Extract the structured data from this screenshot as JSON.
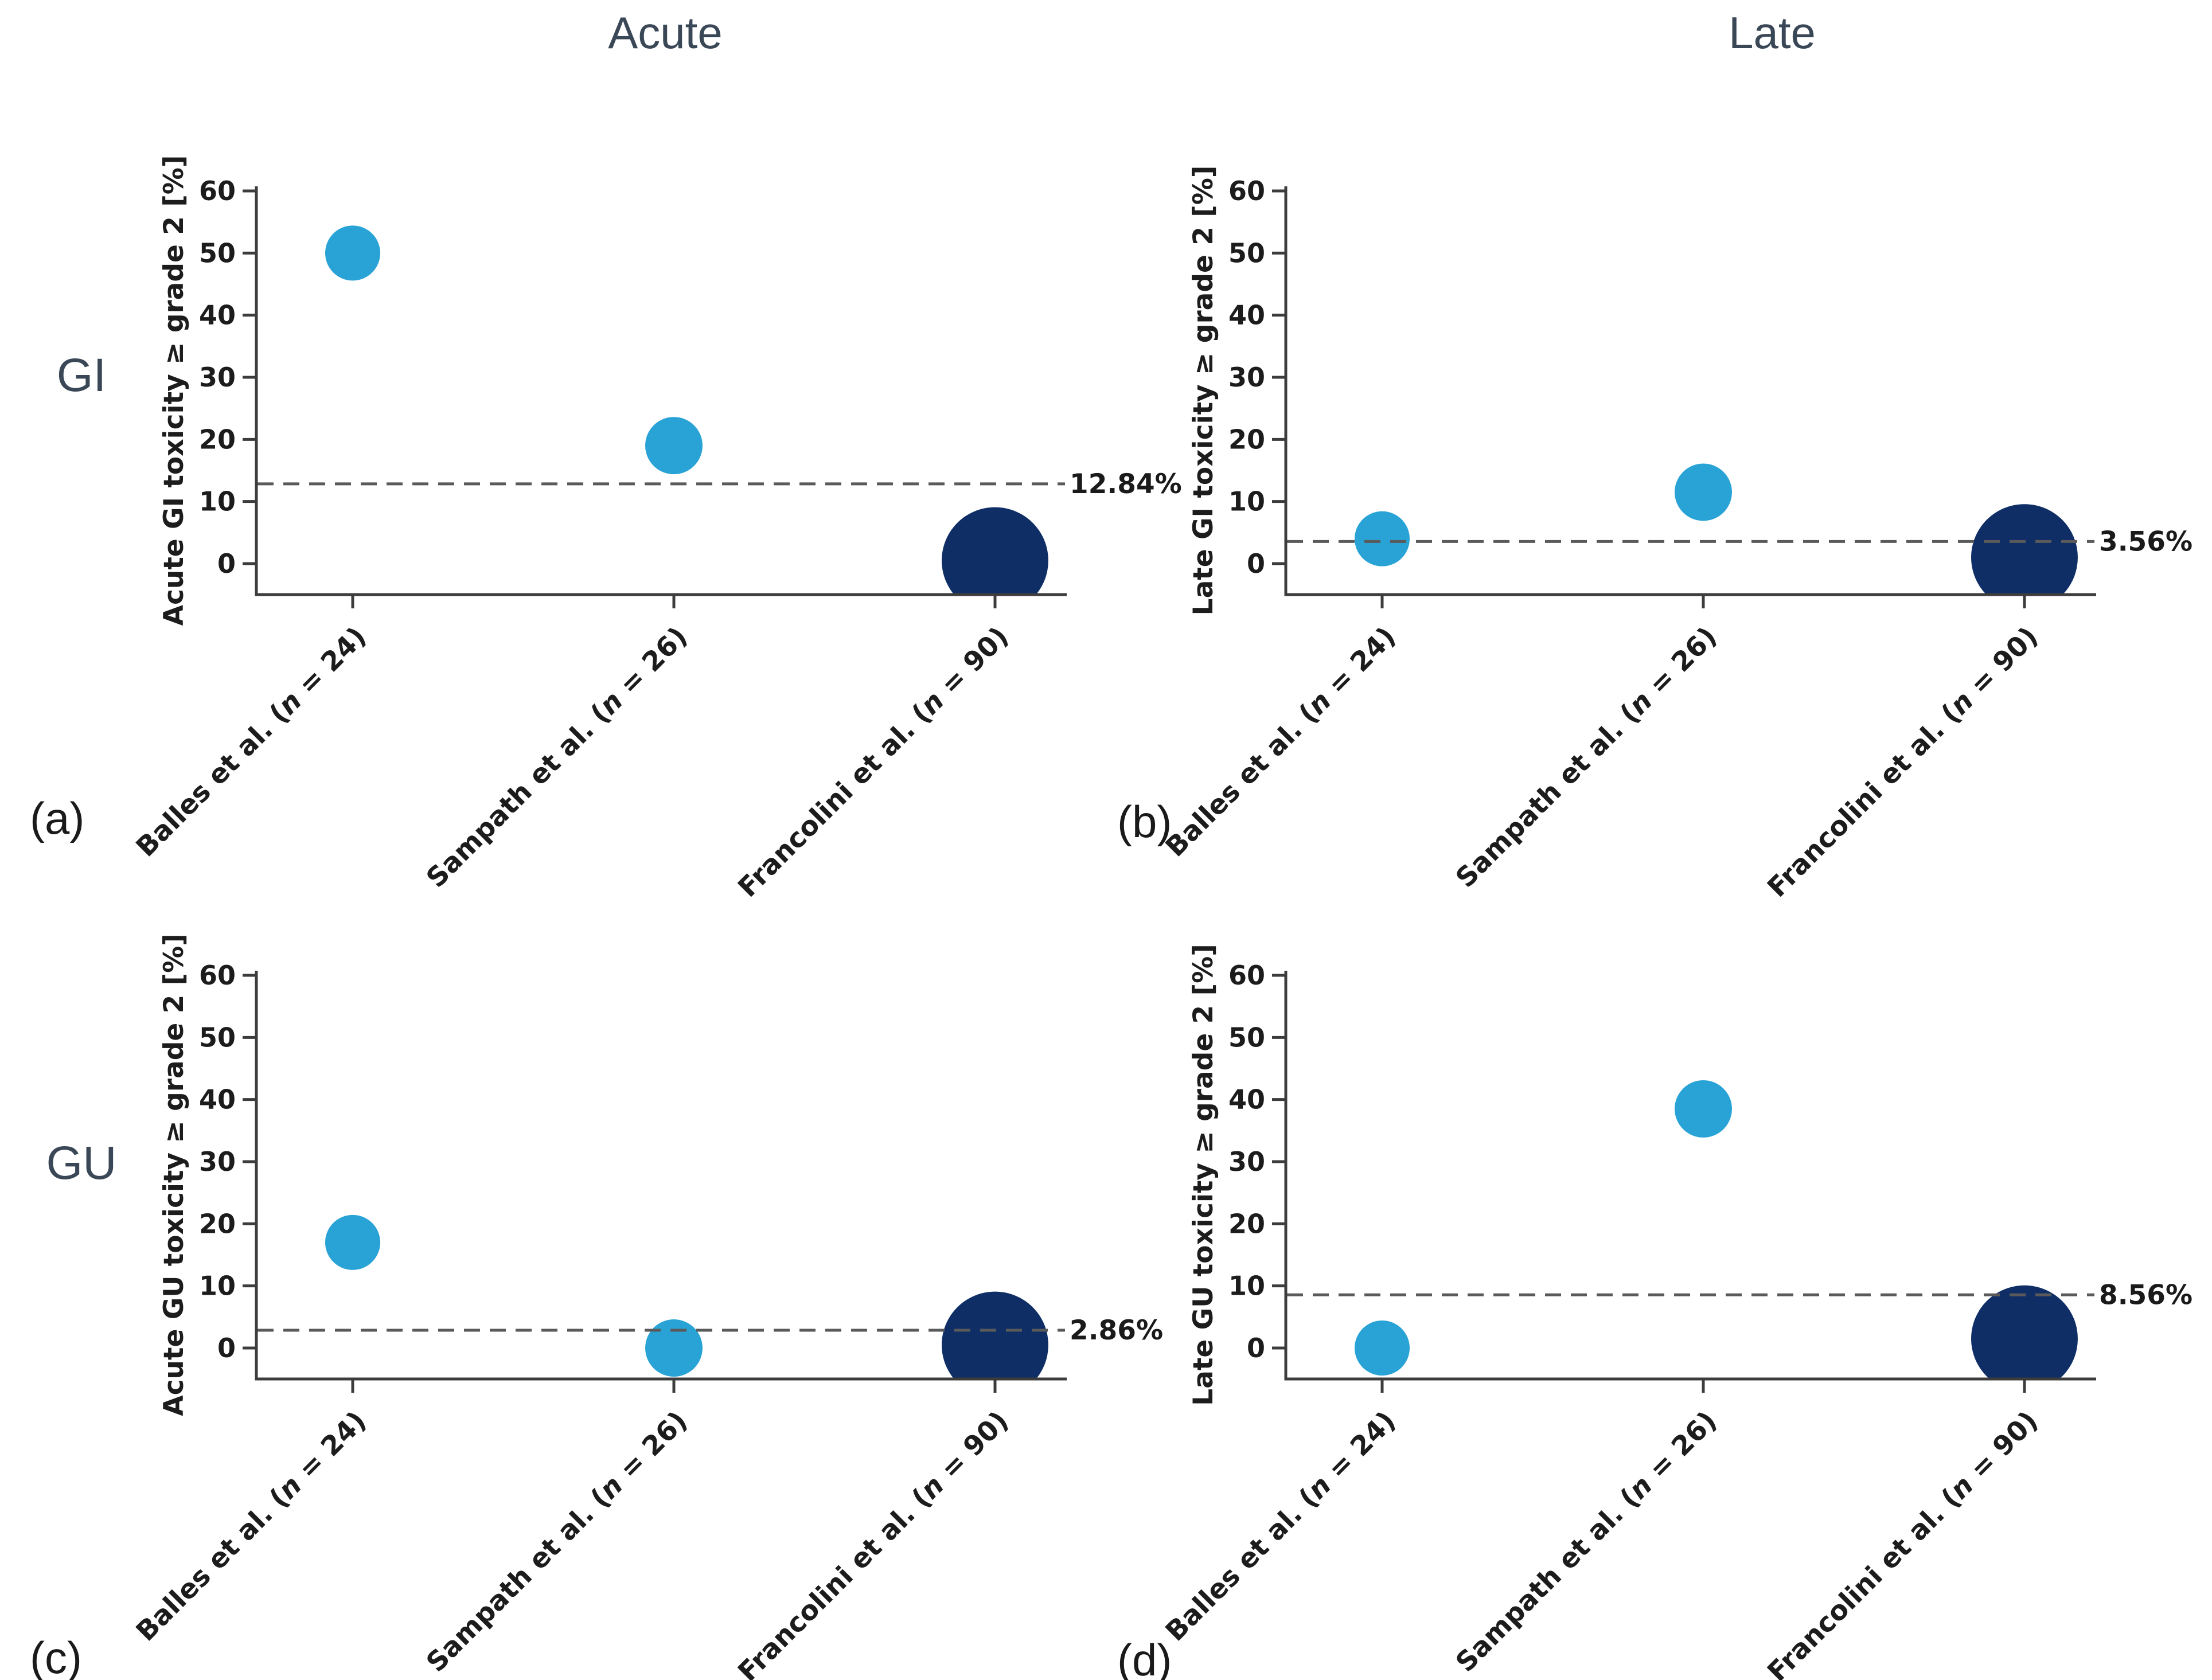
{
  "figure": {
    "column_titles": [
      "Acute",
      "Late"
    ],
    "row_labels": [
      "GI",
      "GU"
    ],
    "panel_letters": [
      "(a)",
      "(b)",
      "(c)",
      "(d)"
    ],
    "background_color": "#ffffff",
    "header_color": "#3a4756",
    "letter_color": "#1a1a1a"
  },
  "colors": {
    "bubble_light": "#29a3d6",
    "bubble_dark": "#0f2e66",
    "axis": "#3c3c3c",
    "tick_label": "#1c1c1c",
    "threshold_line": "#5a5a5a",
    "threshold_label": "#1a1a1a"
  },
  "chart_data": [
    {
      "type": "scatter",
      "panel": "(a)",
      "column": "Acute",
      "row": "GI",
      "ylabel": "Acute GI toxicity ≥ grade 2 [%]",
      "yticks": [
        0,
        10,
        20,
        30,
        40,
        50,
        60
      ],
      "ylim": [
        -5,
        61
      ],
      "grid": false,
      "legend": false,
      "xticklabel_rotation": 45,
      "categories": [
        "Balles et al. (n = 24)",
        "Sampath et al. (n = 26)",
        "Francolini et al. (n = 90)"
      ],
      "points": [
        {
          "study": "Balles et al.",
          "n": 24,
          "value": 50.0,
          "color_key": "bubble_light"
        },
        {
          "study": "Sampath et al.",
          "n": 26,
          "value": 19.0,
          "color_key": "bubble_light"
        },
        {
          "study": "Francolini et al.",
          "n": 90,
          "value": 0.5,
          "color_key": "bubble_dark"
        }
      ],
      "threshold": {
        "value": 12.84,
        "label": "12.84%"
      }
    },
    {
      "type": "scatter",
      "panel": "(b)",
      "column": "Late",
      "row": "GI",
      "ylabel": "Late GI toxicity ≥ grade 2 [%]",
      "yticks": [
        0,
        10,
        20,
        30,
        40,
        50,
        60
      ],
      "ylim": [
        -5,
        61
      ],
      "grid": false,
      "legend": false,
      "xticklabel_rotation": 45,
      "categories": [
        "Balles et al. (n = 24)",
        "Sampath et al. (n = 26)",
        "Francolini et al. (n = 90)"
      ],
      "points": [
        {
          "study": "Balles et al.",
          "n": 24,
          "value": 4.0,
          "color_key": "bubble_light"
        },
        {
          "study": "Sampath et al.",
          "n": 26,
          "value": 11.5,
          "color_key": "bubble_light"
        },
        {
          "study": "Francolini et al.",
          "n": 90,
          "value": 1.0,
          "color_key": "bubble_dark"
        }
      ],
      "threshold": {
        "value": 3.56,
        "label": "3.56%"
      }
    },
    {
      "type": "scatter",
      "panel": "(c)",
      "column": "Acute",
      "row": "GU",
      "ylabel": "Acute GU toxicity ≥ grade 2 [%]",
      "yticks": [
        0,
        10,
        20,
        30,
        40,
        50,
        60
      ],
      "ylim": [
        -5,
        61
      ],
      "grid": false,
      "legend": false,
      "xticklabel_rotation": 45,
      "categories": [
        "Balles et al. (n = 24)",
        "Sampath et al. (n = 26)",
        "Francolini et al. (n = 90)"
      ],
      "points": [
        {
          "study": "Balles et al.",
          "n": 24,
          "value": 17.0,
          "color_key": "bubble_light"
        },
        {
          "study": "Sampath et al.",
          "n": 26,
          "value": 0.0,
          "color_key": "bubble_light"
        },
        {
          "study": "Francolini et al.",
          "n": 90,
          "value": 0.5,
          "color_key": "bubble_dark"
        }
      ],
      "threshold": {
        "value": 2.86,
        "label": "2.86%"
      }
    },
    {
      "type": "scatter",
      "panel": "(d)",
      "column": "Late",
      "row": "GU",
      "ylabel": "Late GU toxicity ≥ grade 2 [%]",
      "yticks": [
        0,
        10,
        20,
        30,
        40,
        50,
        60
      ],
      "ylim": [
        -5,
        61
      ],
      "grid": false,
      "legend": false,
      "xticklabel_rotation": 45,
      "categories": [
        "Balles et al. (n = 24)",
        "Sampath et al. (n = 26)",
        "Francolini et al. (n = 90)"
      ],
      "points": [
        {
          "study": "Balles et al.",
          "n": 24,
          "value": 0.0,
          "color_key": "bubble_light"
        },
        {
          "study": "Sampath et al.",
          "n": 26,
          "value": 38.5,
          "color_key": "bubble_light"
        },
        {
          "study": "Francolini et al.",
          "n": 90,
          "value": 1.5,
          "color_key": "bubble_dark"
        }
      ],
      "threshold": {
        "value": 8.56,
        "label": "8.56%"
      }
    }
  ]
}
